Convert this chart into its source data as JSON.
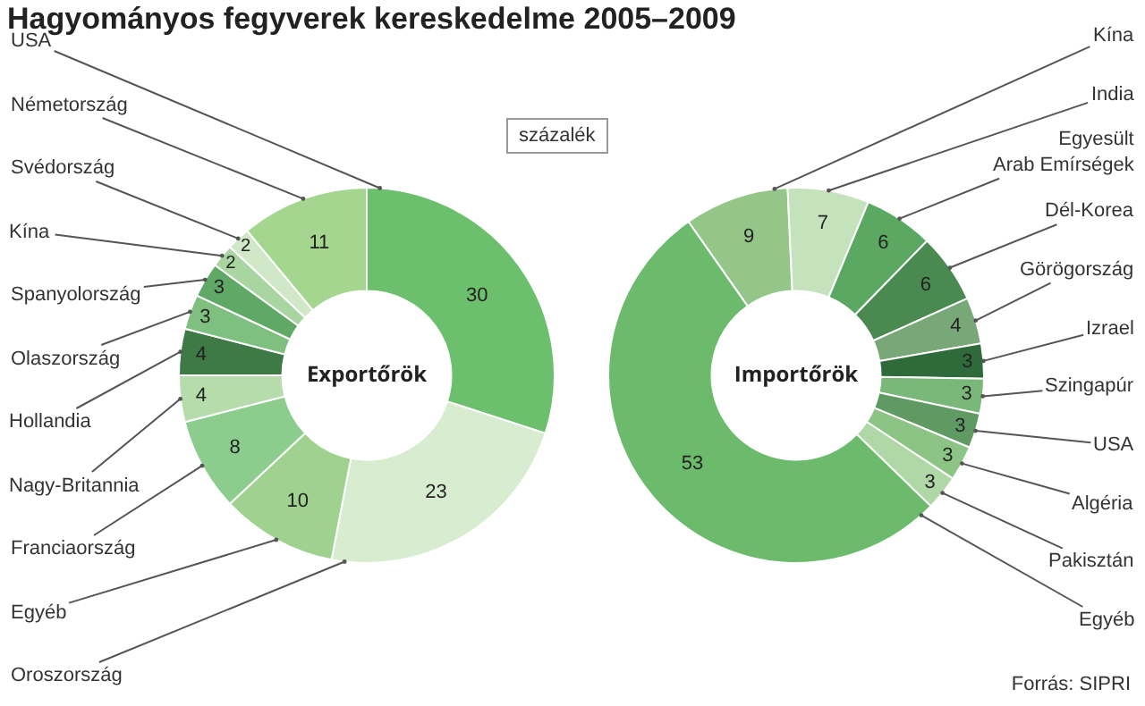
{
  "chart_data": [
    {
      "type": "donut",
      "title": "Hagyományos fegyverek kereskedelme 2005–2009",
      "categories": [
        "USA",
        "Oroszország",
        "Egyéb",
        "Franciaország",
        "Nagy-Britannia",
        "Hollandia",
        "Olaszország",
        "Spanyolország",
        "Kína",
        "Svédország",
        "Németország"
      ],
      "values": [
        30,
        23,
        10,
        8,
        4,
        4,
        3,
        3,
        2,
        2,
        11
      ],
      "colors": [
        "#6cbf6c",
        "#d8ecd0",
        "#9fd28f",
        "#8ccc8c",
        "#b5dcaa",
        "#3d7a45",
        "#7fbf7f",
        "#5fa865",
        "#a8d5a0",
        "#d0e8c8",
        "#a5d68f"
      ],
      "data_labels": true,
      "legend": false,
      "annotations": [
        "Exportőrök",
        "százalék"
      ]
    },
    {
      "type": "donut",
      "categories": [
        "Kína",
        "India",
        "Egyesült Arab Emírségek",
        "Dél-Korea",
        "Görögország",
        "Izrael",
        "Szingapúr",
        "USA",
        "Algéria",
        "Pakisztán",
        "Egyéb"
      ],
      "values": [
        9,
        7,
        6,
        6,
        4,
        3,
        3,
        3,
        3,
        3,
        53
      ],
      "colors": [
        "#94c68a",
        "#c4e2bc",
        "#5aa862",
        "#4a8a50",
        "#78a878",
        "#2f6a3a",
        "#7ab87a",
        "#5f9a63",
        "#8cc485",
        "#b0d8a6",
        "#6cbb6c"
      ],
      "data_labels": true,
      "legend": false,
      "annotations": [
        "Importőrök",
        "Forrás: SIPRI"
      ]
    }
  ]
}
